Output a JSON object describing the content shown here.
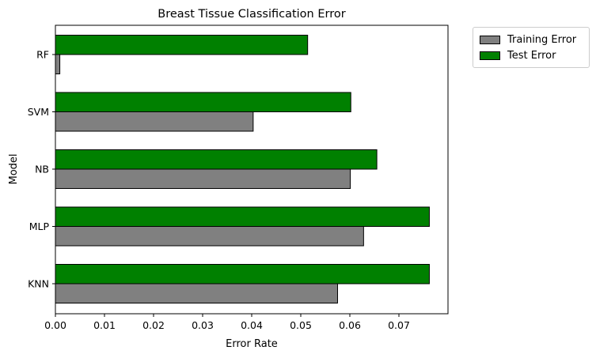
{
  "chart_data": {
    "type": "bar",
    "orientation": "horizontal",
    "title": "Breast Tissue Classification Error",
    "xlabel": "Error Rate",
    "ylabel": "Model",
    "categories": [
      "KNN",
      "MLP",
      "NB",
      "SVM",
      "RF"
    ],
    "series": [
      {
        "name": "Training Error",
        "color": "#808080",
        "values": [
          0.0575,
          0.0628,
          0.0601,
          0.0403,
          0.0009
        ]
      },
      {
        "name": "Test Error",
        "color": "#008000",
        "values": [
          0.0762,
          0.0762,
          0.0655,
          0.0602,
          0.0514
        ]
      }
    ],
    "xlim": [
      0,
      0.08
    ],
    "xticks": [
      "0.00",
      "0.01",
      "0.02",
      "0.03",
      "0.04",
      "0.05",
      "0.06",
      "0.07"
    ],
    "grid": false,
    "legend_position": "outside-top-right"
  }
}
